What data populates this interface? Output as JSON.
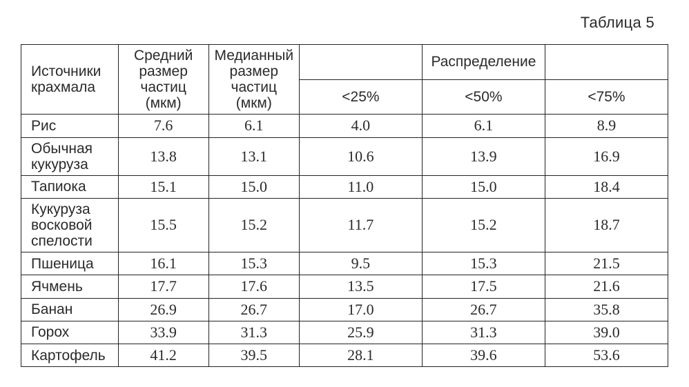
{
  "caption": "Таблица 5",
  "headers": {
    "source": "Источники крахмала",
    "mean": "Средний размер частиц (мкм)",
    "median": "Медианный размер частиц (мкм)",
    "distribution": "Распределение",
    "p25": "<25%",
    "p50": "<50%",
    "p75": "<75%"
  },
  "table": {
    "columns": [
      "source",
      "mean",
      "median",
      "p25",
      "p50",
      "p75"
    ],
    "col_widths_pct": [
      15,
      14,
      14,
      19,
      19,
      19
    ],
    "border_color": "#222222",
    "background_color": "#ffffff",
    "header_fontsize_pt": 16,
    "cell_fontsize_pt": 16,
    "number_font_family": "Times New Roman",
    "alignment": {
      "source": "left",
      "numbers": "center"
    },
    "rows": [
      {
        "source": "Рис",
        "mean": "7.6",
        "median": "6.1",
        "p25": "4.0",
        "p50": "6.1",
        "p75": "8.9"
      },
      {
        "source": "Обычная кукуруза",
        "mean": "13.8",
        "median": "13.1",
        "p25": "10.6",
        "p50": "13.9",
        "p75": "16.9"
      },
      {
        "source": "Тапиока",
        "mean": "15.1",
        "median": "15.0",
        "p25": "11.0",
        "p50": "15.0",
        "p75": "18.4"
      },
      {
        "source": "Кукуруза восковой спелости",
        "mean": "15.5",
        "median": "15.2",
        "p25": "11.7",
        "p50": "15.2",
        "p75": "18.7"
      },
      {
        "source": "Пшеница",
        "mean": "16.1",
        "median": "15.3",
        "p25": "9.5",
        "p50": "15.3",
        "p75": "21.5"
      },
      {
        "source": "Ячмень",
        "mean": "17.7",
        "median": "17.6",
        "p25": "13.5",
        "p50": "17.5",
        "p75": "21.6"
      },
      {
        "source": "Банан",
        "mean": "26.9",
        "median": "26.7",
        "p25": "17.0",
        "p50": "26.7",
        "p75": "35.8"
      },
      {
        "source": "Горох",
        "mean": "33.9",
        "median": "31.3",
        "p25": "25.9",
        "p50": "31.3",
        "p75": "39.0"
      },
      {
        "source": "Картофель",
        "mean": "41.2",
        "median": "39.5",
        "p25": "28.1",
        "p50": "39.6",
        "p75": "53.6"
      }
    ]
  }
}
